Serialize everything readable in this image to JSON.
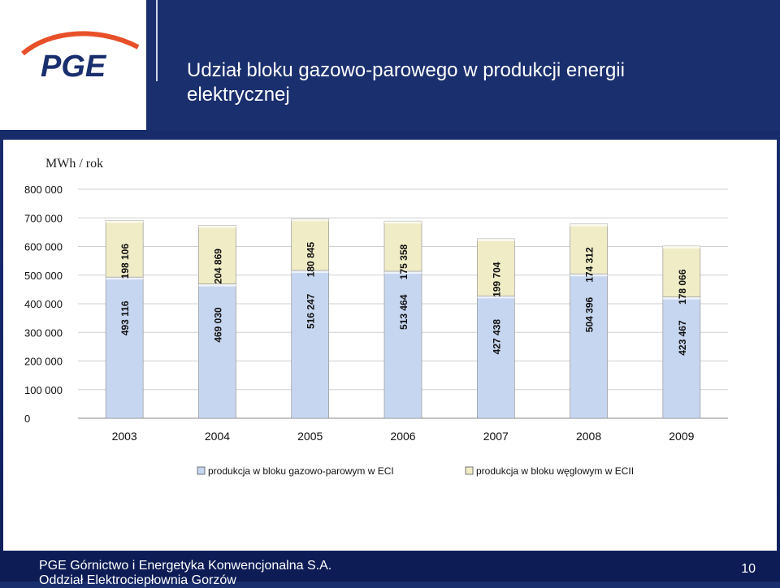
{
  "brand": {
    "logo_text": "PGE"
  },
  "title": {
    "line1": "Udział bloku gazowo-parowego w produkcji energii",
    "line2": "elektrycznej"
  },
  "unit_label": "MWh / rok",
  "chart_data": {
    "type": "bar",
    "stacked": true,
    "categories": [
      "2003",
      "2004",
      "2005",
      "2006",
      "2007",
      "2008",
      "2009"
    ],
    "series": [
      {
        "name": "produkcja w bloku gazowo-parowym w ECI",
        "color": "#c7d6f0",
        "values": [
          493116,
          469030,
          516247,
          513464,
          427438,
          504396,
          423467
        ],
        "labels": [
          "493 116",
          "469 030",
          "516 247",
          "513 464",
          "427 438",
          "504 396",
          "423 467"
        ]
      },
      {
        "name": "produkcja w bloku węglowym w ECII",
        "color": "#f0ecc6",
        "values": [
          198106,
          204869,
          180845,
          175358,
          199704,
          174312,
          178066
        ],
        "labels": [
          "198 106",
          "204 869",
          "180 845",
          "175 358",
          "199 704",
          "174 312",
          "178 066"
        ]
      }
    ],
    "ylim": [
      0,
      800000
    ],
    "ytick_values": [
      0,
      100000,
      200000,
      300000,
      400000,
      500000,
      600000,
      700000,
      800000
    ],
    "yticks": [
      "0",
      "100 000",
      "200 000",
      "300 000",
      "400 000",
      "500 000",
      "600 000",
      "700 000",
      "800 000"
    ],
    "grid": true,
    "legend": "bottom"
  },
  "footer": {
    "line1": "PGE Górnictwo i Energetyka  Konwencjonalna S.A.",
    "line2": "Oddział Elektrociepłownia Gorzów"
  },
  "page_number": "10"
}
